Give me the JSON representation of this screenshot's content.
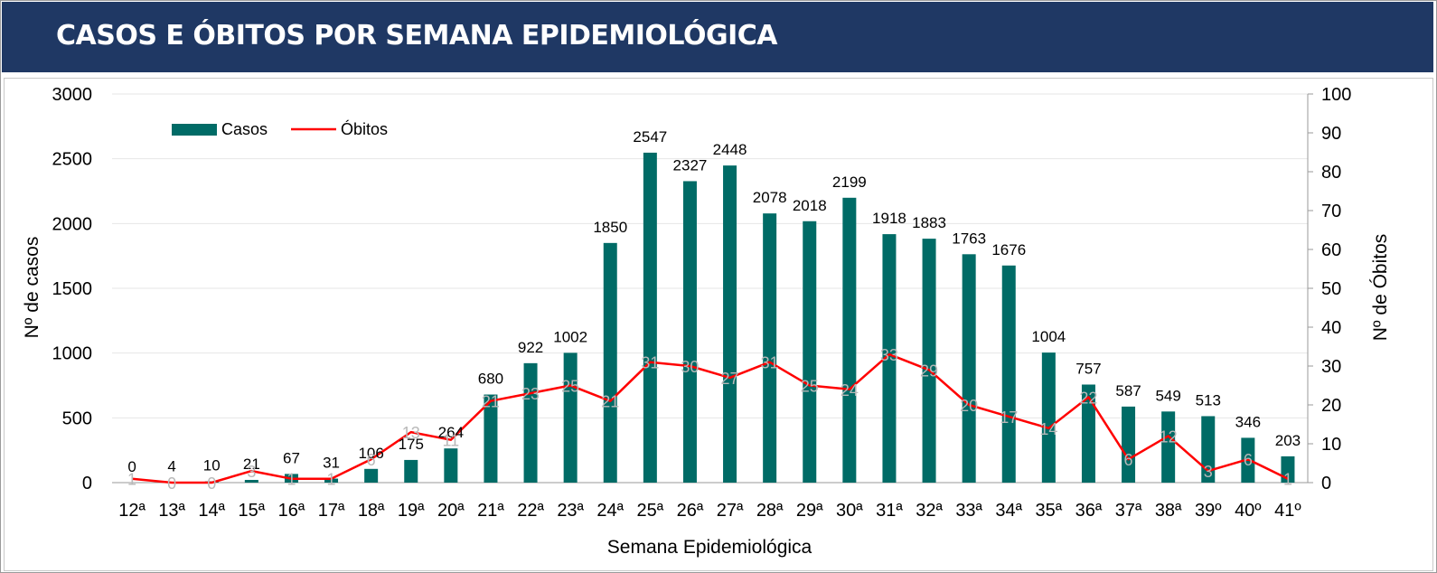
{
  "header": {
    "title": "CASOS E ÓBITOS POR SEMANA EPIDEMIOLÓGICA"
  },
  "colors": {
    "header_bg": "#1f3864",
    "bar": "#006b66",
    "line": "#ff0000",
    "line_label": "#b8b8b8"
  },
  "chart_data": {
    "type": "bar",
    "title": "CASOS E ÓBITOS POR SEMANA EPIDEMIOLÓGICA",
    "xlabel": "Semana Epidemiológica",
    "ylabel": "Nº de casos",
    "y2label": "Nº de Óbitos",
    "ylim": [
      0,
      3000
    ],
    "y2lim": [
      0,
      100
    ],
    "yticks": [
      "0",
      "500",
      "1000",
      "1500",
      "2000",
      "2500",
      "3000"
    ],
    "y2ticks": [
      "0",
      "10",
      "20",
      "30",
      "40",
      "50",
      "60",
      "70",
      "80",
      "90",
      "100"
    ],
    "grid": true,
    "legend": "top-left",
    "categories": [
      "12ª",
      "13ª",
      "14ª",
      "15ª",
      "16ª",
      "17ª",
      "18ª",
      "19ª",
      "20ª",
      "21ª",
      "22ª",
      "23ª",
      "24ª",
      "25ª",
      "26ª",
      "27ª",
      "28ª",
      "29ª",
      "30ª",
      "31ª",
      "32ª",
      "33ª",
      "34ª",
      "35ª",
      "36ª",
      "37ª",
      "38ª",
      "39º",
      "40º",
      "41º"
    ],
    "series": [
      {
        "name": "Casos",
        "type": "bar",
        "axis": "left",
        "values": [
          0,
          4,
          10,
          21,
          67,
          31,
          106,
          175,
          264,
          680,
          922,
          1002,
          1850,
          2547,
          2327,
          2448,
          2078,
          2018,
          2199,
          1918,
          1883,
          1763,
          1676,
          1004,
          757,
          587,
          549,
          513,
          346,
          203
        ]
      },
      {
        "name": "Óbitos",
        "type": "line",
        "axis": "right",
        "values": [
          1,
          0,
          0,
          3,
          1,
          1,
          6,
          13,
          11,
          21,
          23,
          25,
          21,
          31,
          30,
          27,
          31,
          25,
          24,
          33,
          29,
          20,
          17,
          14,
          22,
          6,
          12,
          3,
          6,
          1
        ]
      }
    ]
  }
}
